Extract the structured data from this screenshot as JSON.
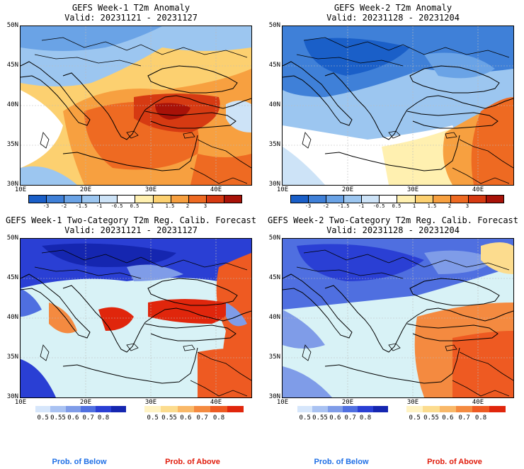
{
  "panels": [
    {
      "title": "GEFS Week-1 T2m Anomaly",
      "valid": "Valid: 20231121 - 20231127"
    },
    {
      "title": "GEFS Week-2 T2m Anomaly",
      "valid": "Valid: 20231128 - 20231204"
    },
    {
      "title": "GEFS Week-1 Two-Category T2m Reg. Calib. Forecast",
      "valid": "Valid: 20231121 - 20231127"
    },
    {
      "title": "GEFS Week-2 Two-Category T2m Reg. Calib. Forecast",
      "valid": "Valid: 20231128 - 20231204"
    }
  ],
  "lat_labels": [
    "50N",
    "45N",
    "40N",
    "35N",
    "30N"
  ],
  "lon_labels": [
    "10E",
    "20E",
    "30E",
    "40E"
  ],
  "anomaly_colorbar": {
    "ticks": [
      "-3",
      "-2",
      "-1.5",
      "-1",
      "-0.5",
      "0.5",
      "1",
      "1.5",
      "2",
      "3"
    ],
    "colors": [
      "#1a5fc8",
      "#3f80d8",
      "#6aa3e6",
      "#9cc6f0",
      "#cde3f7",
      "#ffffff",
      "#fff0b0",
      "#fcd070",
      "#f7a040",
      "#ee6a22",
      "#d63a12",
      "#a81208"
    ]
  },
  "prob_below": {
    "ticks": [
      "0.5",
      "0.55",
      "0.6",
      "0.7",
      "0.8"
    ],
    "colors": [
      "#d6e6fb",
      "#a9c2f2",
      "#7f9ce8",
      "#4f6fe0",
      "#2a3fd4",
      "#1526b0"
    ],
    "label": "Prob. of Below",
    "label_color": "#1e6fe6"
  },
  "prob_above": {
    "ticks": [
      "0.5",
      "0.55",
      "0.6",
      "0.7",
      "0.8"
    ],
    "colors": [
      "#fff3c4",
      "#fcdc8e",
      "#f9b868",
      "#f48a40",
      "#ee5a22",
      "#e0260c"
    ],
    "label": "Prob. of Above",
    "label_color": "#e01a0a"
  }
}
